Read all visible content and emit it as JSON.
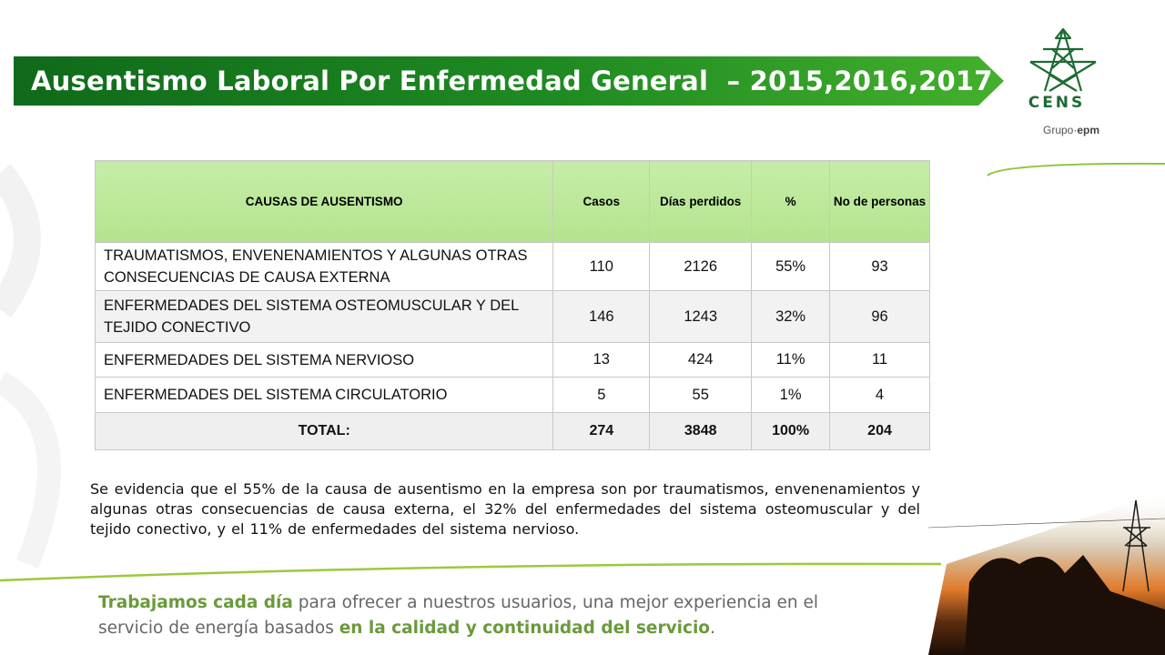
{
  "title": "Ausentismo Laboral Por Enfermedad General  – 2015,2016,2017",
  "logo": {
    "name": "CENS",
    "group_prefix": "Grupo·",
    "group_suffix": "epm"
  },
  "table": {
    "headers": [
      "CAUSAS DE AUSENTISMO",
      "Casos",
      "Días perdidos",
      "%",
      "No de personas"
    ],
    "rows": [
      {
        "cause": "TRAUMATISMOS, ENVENENAMIENTOS Y ALGUNAS OTRAS   CONSECUENCIAS DE CAUSA EXTERNA",
        "casos": "110",
        "dias": "2126",
        "pct": "55%",
        "personas": "93"
      },
      {
        "cause": " ENFERMEDADES DEL SISTEMA OSTEOMUSCULAR Y DEL TEJIDO  CONECTIVO",
        "casos": "146",
        "dias": "1243",
        "pct": "32%",
        "personas": "96"
      },
      {
        "cause": " ENFERMEDADES DEL SISTEMA NERVIOSO",
        "casos": "13",
        "dias": "424",
        "pct": "11%",
        "personas": "11"
      },
      {
        "cause": " ENFERMEDADES DEL SISTEMA CIRCULATORIO",
        "casos": "5",
        "dias": "55",
        "pct": "1%",
        "personas": "4"
      }
    ],
    "total": {
      "label": "TOTAL:",
      "casos": "274",
      "dias": "3848",
      "pct": "100%",
      "personas": "204"
    }
  },
  "conclusion": "Se evidencia que el 55%  de la causa de ausentismo en la empresa son por traumatismos, envenenamientos y algunas otras   consecuencias de causa externa, el 32%  del enfermedades del sistema osteomuscular y del tejido  conectivo, y el 11% de  enfermedades  del sistema nervioso.",
  "footer": {
    "part1": "Trabajamos cada día",
    "part2": " para ofrecer a nuestros usuarios, una mejor experiencia en el servicio de energía basados ",
    "part3": "en la calidad y continuidad del servicio",
    "part4": "."
  },
  "colors": {
    "banner_dark": "#1b7a1b",
    "banner_light": "#3fae2a",
    "header_green": "#bfe9a0",
    "accent_green": "#8dc63f",
    "logo_green": "#1e6b33"
  }
}
